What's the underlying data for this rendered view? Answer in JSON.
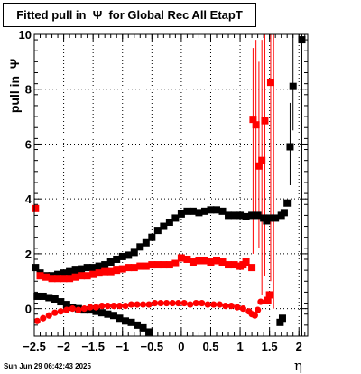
{
  "title": "Fitted pull in  Ψ  for Global Rec All EtapT",
  "timestamp": "Sun Jun 29 06:42:43 2025",
  "chart_data": {
    "type": "scatter",
    "title": "Fitted pull in  Ψ  for Global Rec All EtapT",
    "xlabel": "η",
    "ylabel": "pull in  Ψ",
    "xlim": [
      -2.5,
      2.15
    ],
    "ylim": [
      -1.0,
      10.0
    ],
    "xticks": [
      -2.5,
      -2,
      -1.5,
      -1,
      -0.5,
      0,
      0.5,
      1,
      1.5,
      2
    ],
    "xtick_labels": [
      "−2.5",
      "−2",
      "−1.5",
      "−1",
      "−0.5",
      "0",
      "0.5",
      "1",
      "1.5",
      "2"
    ],
    "yticks": [
      0,
      2,
      4,
      6,
      8,
      10
    ],
    "ytick_labels": [
      "0",
      "2",
      "4",
      "6",
      "8",
      "10"
    ],
    "grid": true,
    "series": [
      {
        "color": "#000000",
        "marker": "square",
        "points": [
          [
            -2.48,
            1.5
          ],
          [
            -2.4,
            1.3
          ],
          [
            -2.3,
            1.2
          ],
          [
            -2.2,
            1.2
          ],
          [
            -2.1,
            1.25
          ],
          [
            -2.0,
            1.3
          ],
          [
            -1.9,
            1.35
          ],
          [
            -1.8,
            1.4
          ],
          [
            -1.7,
            1.45
          ],
          [
            -1.6,
            1.5
          ],
          [
            -1.5,
            1.5
          ],
          [
            -1.4,
            1.55
          ],
          [
            -1.3,
            1.6
          ],
          [
            -1.2,
            1.7
          ],
          [
            -1.1,
            1.8
          ],
          [
            -1.0,
            1.9
          ],
          [
            -0.9,
            1.95
          ],
          [
            -0.8,
            2.05
          ],
          [
            -0.7,
            2.25
          ],
          [
            -0.6,
            2.4
          ],
          [
            -0.5,
            2.6
          ],
          [
            -0.4,
            2.85
          ],
          [
            -0.3,
            3.0
          ],
          [
            -0.2,
            3.15
          ],
          [
            -0.1,
            3.3
          ],
          [
            0.0,
            3.45
          ],
          [
            0.1,
            3.55
          ],
          [
            0.2,
            3.55
          ],
          [
            0.3,
            3.5
          ],
          [
            0.4,
            3.55
          ],
          [
            0.5,
            3.6
          ],
          [
            0.6,
            3.6
          ],
          [
            0.7,
            3.55
          ],
          [
            0.8,
            3.4
          ],
          [
            0.9,
            3.4
          ],
          [
            1.0,
            3.4
          ],
          [
            1.1,
            3.35
          ],
          [
            1.2,
            3.4
          ],
          [
            1.3,
            3.4
          ],
          [
            1.4,
            3.3
          ],
          [
            1.45,
            3.2
          ],
          [
            1.5,
            3.3
          ],
          [
            1.6,
            3.3
          ],
          [
            1.7,
            3.4
          ],
          [
            1.75,
            3.5
          ],
          [
            1.8,
            3.85
          ],
          [
            1.85,
            5.9
          ],
          [
            1.9,
            8.1
          ],
          [
            2.05,
            9.8
          ]
        ]
      },
      {
        "color": "#000000",
        "marker": "square",
        "points": [
          [
            -2.45,
            0.45
          ],
          [
            -2.35,
            0.45
          ],
          [
            -2.25,
            0.4
          ],
          [
            -2.15,
            0.35
          ],
          [
            -2.05,
            0.25
          ],
          [
            -1.95,
            0.15
          ],
          [
            -1.85,
            0.05
          ],
          [
            -1.75,
            0.0
          ],
          [
            -1.65,
            -0.05
          ],
          [
            -1.55,
            -0.05
          ],
          [
            -1.45,
            -0.1
          ],
          [
            -1.35,
            -0.15
          ],
          [
            -1.25,
            -0.2
          ],
          [
            -1.15,
            -0.25
          ],
          [
            -1.05,
            -0.35
          ],
          [
            -0.95,
            -0.45
          ],
          [
            -0.85,
            -0.5
          ],
          [
            -0.75,
            -0.6
          ],
          [
            -0.65,
            -0.7
          ],
          [
            -0.55,
            -0.85
          ],
          [
            1.72,
            -0.35
          ],
          [
            1.68,
            -0.5
          ]
        ]
      },
      {
        "color": "#ff0000",
        "marker": "square",
        "points": [
          [
            -2.48,
            3.65
          ],
          [
            -2.4,
            1.2
          ],
          [
            -2.3,
            1.15
          ],
          [
            -2.2,
            1.1
          ],
          [
            -2.1,
            1.1
          ],
          [
            -2.0,
            1.1
          ],
          [
            -1.9,
            1.1
          ],
          [
            -1.8,
            1.15
          ],
          [
            -1.7,
            1.2
          ],
          [
            -1.6,
            1.2
          ],
          [
            -1.5,
            1.25
          ],
          [
            -1.4,
            1.3
          ],
          [
            -1.3,
            1.35
          ],
          [
            -1.2,
            1.35
          ],
          [
            -1.1,
            1.4
          ],
          [
            -1.0,
            1.45
          ],
          [
            -0.9,
            1.5
          ],
          [
            -0.8,
            1.5
          ],
          [
            -0.7,
            1.55
          ],
          [
            -0.6,
            1.55
          ],
          [
            -0.5,
            1.6
          ],
          [
            -0.4,
            1.6
          ],
          [
            -0.3,
            1.6
          ],
          [
            -0.2,
            1.6
          ],
          [
            -0.1,
            1.65
          ],
          [
            0.0,
            1.85
          ],
          [
            0.1,
            1.8
          ],
          [
            0.2,
            1.7
          ],
          [
            0.3,
            1.75
          ],
          [
            0.4,
            1.75
          ],
          [
            0.5,
            1.7
          ],
          [
            0.6,
            1.75
          ],
          [
            0.7,
            1.7
          ],
          [
            0.8,
            1.6
          ],
          [
            0.9,
            1.6
          ],
          [
            1.0,
            1.55
          ],
          [
            1.05,
            1.6
          ],
          [
            1.1,
            1.7
          ],
          [
            1.2,
            1.5
          ],
          [
            1.22,
            6.9
          ],
          [
            1.27,
            6.7
          ],
          [
            1.32,
            5.2
          ],
          [
            1.37,
            5.4
          ],
          [
            1.42,
            6.85
          ],
          [
            1.47,
            0.3
          ],
          [
            1.52,
            8.25
          ],
          [
            1.5,
            0.5
          ]
        ]
      },
      {
        "color": "#ff0000",
        "marker": "circle",
        "points": [
          [
            -2.45,
            -0.45
          ],
          [
            -2.35,
            -0.35
          ],
          [
            -2.25,
            -0.25
          ],
          [
            -2.15,
            -0.15
          ],
          [
            -2.05,
            -0.1
          ],
          [
            -1.95,
            -0.05
          ],
          [
            -1.85,
            0.0
          ],
          [
            -1.75,
            -0.05
          ],
          [
            -1.65,
            0.0
          ],
          [
            -1.55,
            0.05
          ],
          [
            -1.45,
            0.05
          ],
          [
            -1.35,
            0.1
          ],
          [
            -1.25,
            0.1
          ],
          [
            -1.15,
            0.1
          ],
          [
            -1.05,
            0.1
          ],
          [
            -0.95,
            0.1
          ],
          [
            -0.85,
            0.15
          ],
          [
            -0.75,
            0.15
          ],
          [
            -0.65,
            0.15
          ],
          [
            -0.55,
            0.15
          ],
          [
            -0.45,
            0.2
          ],
          [
            -0.35,
            0.2
          ],
          [
            -0.25,
            0.2
          ],
          [
            -0.15,
            0.2
          ],
          [
            -0.05,
            0.2
          ],
          [
            0.05,
            0.2
          ],
          [
            0.15,
            0.15
          ],
          [
            0.25,
            0.2
          ],
          [
            0.35,
            0.2
          ],
          [
            0.45,
            0.15
          ],
          [
            0.55,
            0.15
          ],
          [
            0.65,
            0.15
          ],
          [
            0.75,
            0.1
          ],
          [
            0.85,
            0.1
          ],
          [
            0.95,
            0.05
          ],
          [
            1.05,
            0.0
          ],
          [
            1.15,
            -0.1
          ],
          [
            1.2,
            -0.2
          ],
          [
            1.25,
            -0.25
          ],
          [
            1.3,
            -0.05
          ],
          [
            1.35,
            0.25
          ],
          [
            1.45,
            0.3
          ],
          [
            1.52,
            0.5
          ]
        ]
      }
    ],
    "error_bars": [
      {
        "x": 1.22,
        "y_low": 2.0,
        "y_high": 9.5,
        "color": "#ff0000"
      },
      {
        "x": 1.27,
        "y_low": 3.5,
        "y_high": 9.8,
        "color": "#ff0000"
      },
      {
        "x": 1.32,
        "y_low": 2.2,
        "y_high": 9.0,
        "color": "#ff0000"
      },
      {
        "x": 1.37,
        "y_low": 0.5,
        "y_high": 9.8,
        "color": "#ff0000"
      },
      {
        "x": 1.42,
        "y_low": 1.2,
        "y_high": 10.0,
        "color": "#ff0000"
      },
      {
        "x": 1.52,
        "y_low": 1.0,
        "y_high": 10.0,
        "color": "#ff0000"
      },
      {
        "x": 1.57,
        "y_low": 0.0,
        "y_high": 10.0,
        "color": "#ff0000"
      },
      {
        "x": 1.85,
        "y_low": 4.5,
        "y_high": 7.5,
        "color": "#000000"
      },
      {
        "x": 1.9,
        "y_low": 6.5,
        "y_high": 10.0,
        "color": "#000000"
      },
      {
        "x": 2.05,
        "y_low": -1.0,
        "y_high": 10.0,
        "color": "#000000"
      }
    ]
  }
}
